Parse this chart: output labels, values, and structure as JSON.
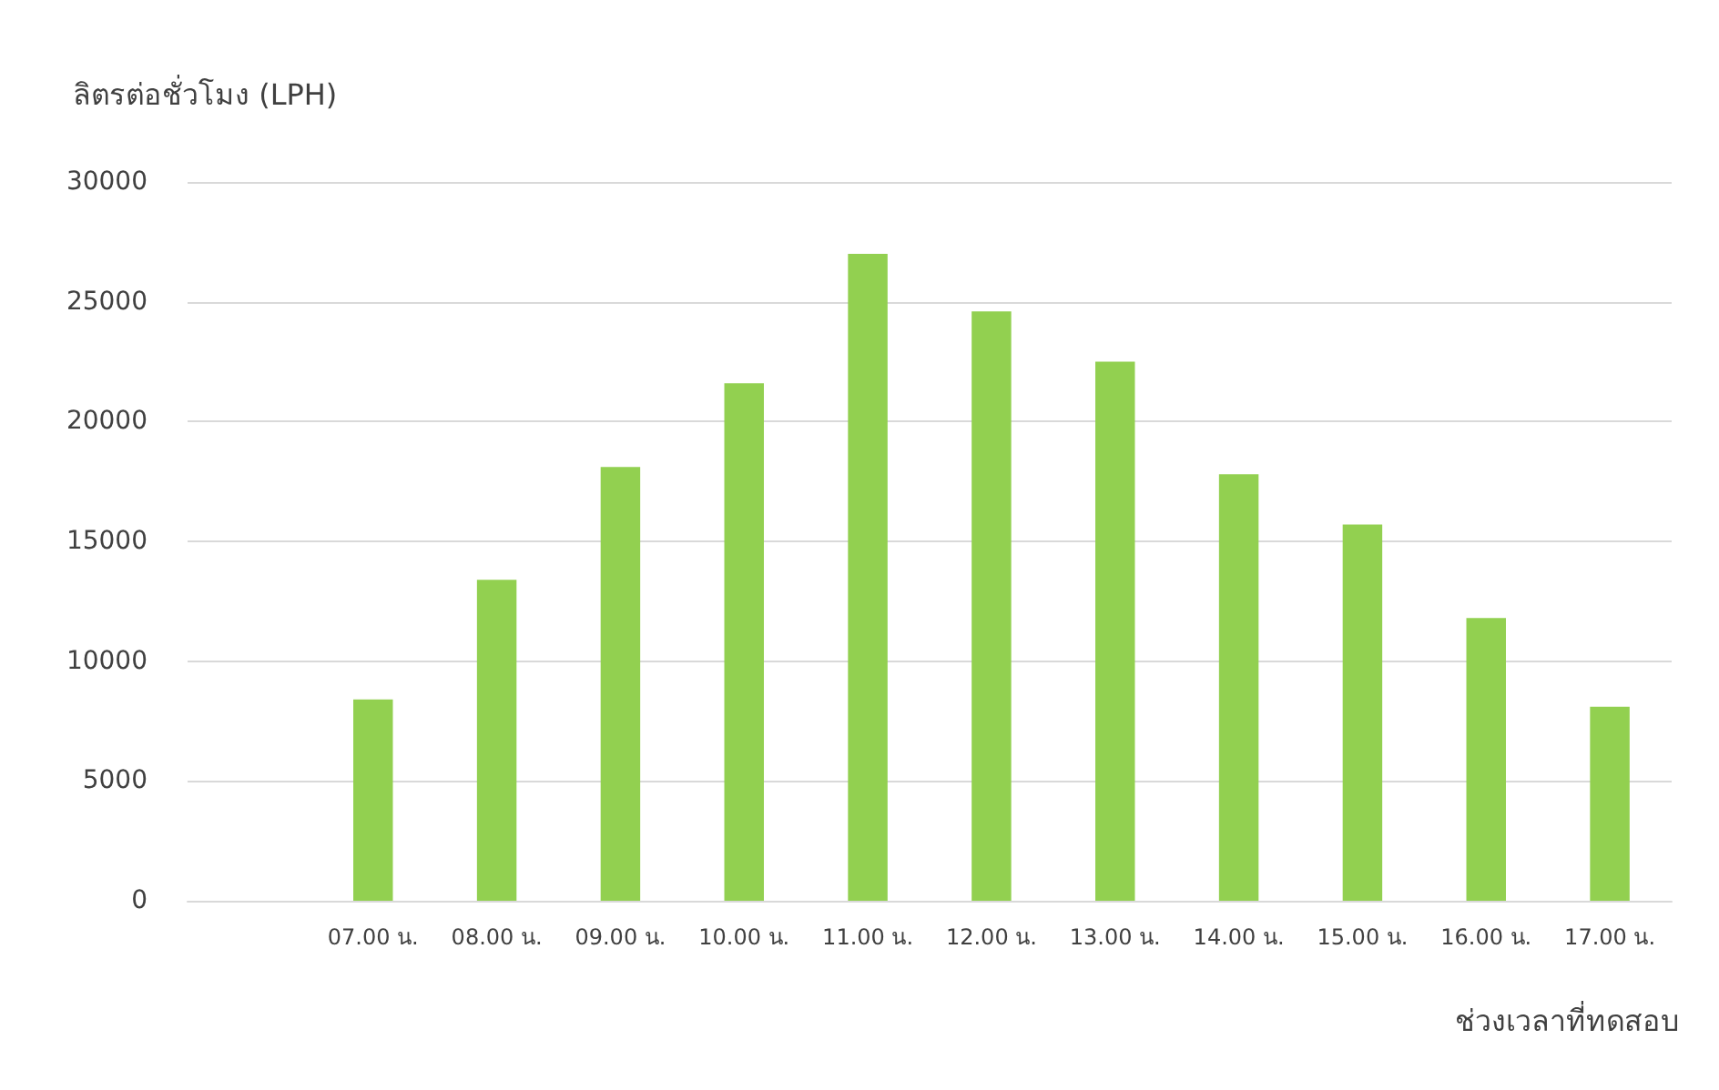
{
  "chart_data": {
    "type": "bar",
    "ylabel": "ลิตรต่อชั่วโมง (LPH)",
    "xlabel": "ช่วงเวลาที่ทดสอบ",
    "categories": [
      null,
      "07.00 น.",
      "08.00 น.",
      "09.00 น.",
      "10.00 น.",
      "11.00 น.",
      "12.00 น.",
      "13.00 น.",
      "14.00 น.",
      "15.00 น.",
      "16.00 น.",
      "17.00 น."
    ],
    "values": [
      null,
      8400,
      13400,
      18100,
      21600,
      27000,
      24600,
      22500,
      17800,
      15700,
      11800,
      8100
    ],
    "color": "#92d050",
    "ylim": [
      0,
      30000
    ],
    "yticks": [
      0,
      5000,
      10000,
      15000,
      20000,
      25000,
      30000
    ],
    "grid": "y"
  }
}
